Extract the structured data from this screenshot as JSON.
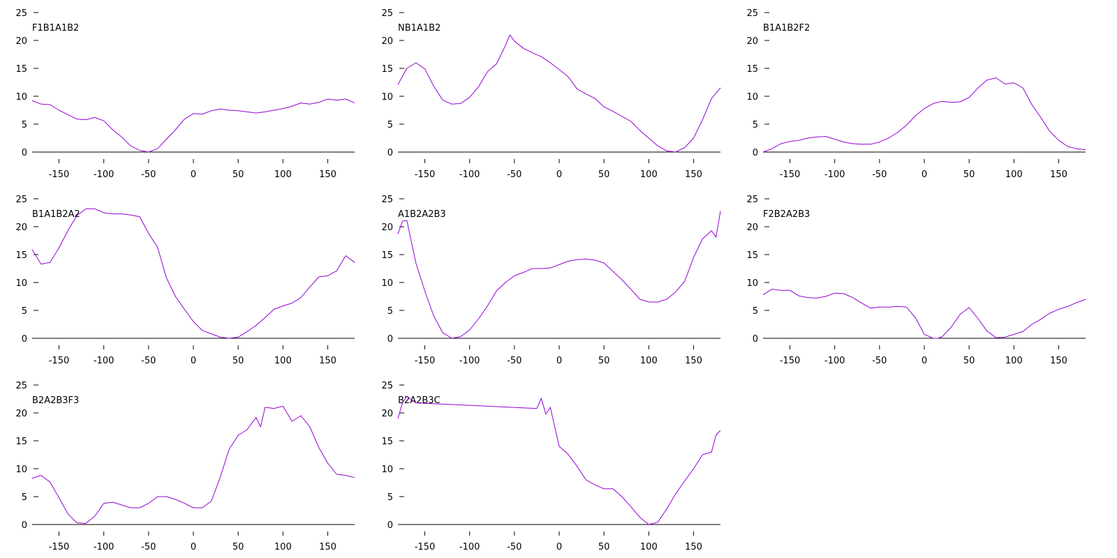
{
  "chart_data": [
    {
      "type": "line",
      "title": "F1B1A1B2",
      "xlim": [
        -180,
        180
      ],
      "ylim": [
        0,
        25
      ],
      "xticks": [
        -150,
        -100,
        -50,
        0,
        50,
        100,
        150
      ],
      "yticks": [
        0,
        5,
        10,
        15,
        20,
        25
      ],
      "x": [
        -180,
        -170,
        -160,
        -150,
        -140,
        -130,
        -120,
        -110,
        -100,
        -90,
        -80,
        -70,
        -60,
        -50,
        -40,
        -30,
        -20,
        -10,
        0,
        10,
        20,
        30,
        40,
        50,
        60,
        70,
        80,
        90,
        100,
        110,
        120,
        130,
        140,
        150,
        160,
        170,
        180
      ],
      "series": [
        {
          "values": [
            9.2,
            8.6,
            8.5,
            7.5,
            6.7,
            5.9,
            5.8,
            6.2,
            5.6,
            4.0,
            2.7,
            1.1,
            0.3,
            0.0,
            0.6,
            2.3,
            4.0,
            5.9,
            6.9,
            6.8,
            7.4,
            7.7,
            7.5,
            7.4,
            7.2,
            7.0,
            7.2,
            7.5,
            7.8,
            8.2,
            8.8,
            8.6,
            8.9,
            9.5,
            9.3,
            9.5,
            8.8
          ]
        }
      ]
    },
    {
      "type": "line",
      "title": "NB1A1B2",
      "xlim": [
        -180,
        180
      ],
      "ylim": [
        0,
        25
      ],
      "xticks": [
        -150,
        -100,
        -50,
        0,
        50,
        100,
        150
      ],
      "yticks": [
        0,
        5,
        10,
        15,
        20,
        25
      ],
      "x": [
        -180,
        -170,
        -160,
        -150,
        -140,
        -130,
        -120,
        -110,
        -100,
        -90,
        -80,
        -70,
        -60,
        -55,
        -50,
        -40,
        -30,
        -20,
        -10,
        0,
        10,
        20,
        30,
        40,
        50,
        60,
        70,
        80,
        90,
        100,
        110,
        120,
        130,
        140,
        150,
        160,
        170,
        180
      ],
      "series": [
        {
          "values": [
            12.1,
            15.0,
            16.0,
            14.9,
            11.8,
            9.3,
            8.6,
            8.7,
            9.8,
            11.7,
            14.4,
            15.8,
            19.1,
            21.0,
            19.9,
            18.6,
            17.8,
            17.1,
            16.0,
            14.8,
            13.5,
            11.3,
            10.4,
            9.6,
            8.1,
            7.3,
            6.4,
            5.5,
            3.9,
            2.5,
            1.1,
            0.2,
            0.0,
            0.8,
            2.5,
            5.8,
            9.6,
            11.5
          ]
        }
      ]
    },
    {
      "type": "line",
      "title": "B1A1B2F2",
      "xlim": [
        -180,
        180
      ],
      "ylim": [
        0,
        25
      ],
      "xticks": [
        -150,
        -100,
        -50,
        0,
        50,
        100,
        150
      ],
      "yticks": [
        0,
        5,
        10,
        15,
        20,
        25
      ],
      "x": [
        -180,
        -170,
        -160,
        -150,
        -140,
        -130,
        -120,
        -110,
        -100,
        -90,
        -80,
        -70,
        -60,
        -50,
        -40,
        -30,
        -20,
        -10,
        0,
        10,
        20,
        30,
        40,
        50,
        60,
        70,
        80,
        90,
        100,
        110,
        120,
        130,
        140,
        150,
        160,
        170,
        180
      ],
      "series": [
        {
          "values": [
            0.0,
            0.6,
            1.5,
            1.9,
            2.1,
            2.5,
            2.7,
            2.8,
            2.3,
            1.8,
            1.5,
            1.4,
            1.4,
            1.8,
            2.5,
            3.5,
            4.8,
            6.5,
            7.8,
            8.7,
            9.1,
            8.9,
            9.0,
            9.8,
            11.5,
            12.9,
            13.3,
            12.2,
            12.4,
            11.5,
            8.5,
            6.2,
            3.7,
            2.1,
            1.0,
            0.6,
            0.4
          ]
        }
      ]
    },
    {
      "type": "line",
      "title": "B1A1B2A2",
      "xlim": [
        -180,
        180
      ],
      "ylim": [
        0,
        25
      ],
      "xticks": [
        -150,
        -100,
        -50,
        0,
        50,
        100,
        150
      ],
      "yticks": [
        0,
        5,
        10,
        15,
        20,
        25
      ],
      "x": [
        -180,
        -170,
        -160,
        -150,
        -140,
        -130,
        -120,
        -110,
        -100,
        -90,
        -80,
        -70,
        -60,
        -50,
        -40,
        -30,
        -20,
        -10,
        0,
        10,
        20,
        30,
        40,
        50,
        60,
        70,
        80,
        90,
        100,
        110,
        120,
        130,
        140,
        150,
        160,
        170,
        180
      ],
      "series": [
        {
          "values": [
            15.9,
            13.3,
            13.6,
            16.2,
            19.3,
            22.0,
            23.2,
            23.2,
            22.5,
            22.3,
            22.3,
            22.1,
            21.8,
            18.8,
            16.3,
            10.8,
            7.5,
            5.2,
            3.0,
            1.4,
            0.8,
            0.2,
            0.0,
            0.2,
            1.2,
            2.3,
            3.7,
            5.2,
            5.8,
            6.3,
            7.3,
            9.2,
            11.0,
            11.2,
            12.1,
            14.8,
            13.6
          ]
        }
      ]
    },
    {
      "type": "line",
      "title": "A1B2A2B3",
      "xlim": [
        -180,
        180
      ],
      "ylim": [
        0,
        25
      ],
      "xticks": [
        -150,
        -100,
        -50,
        0,
        50,
        100,
        150
      ],
      "yticks": [
        0,
        5,
        10,
        15,
        20,
        25
      ],
      "x": [
        -180,
        -175,
        -170,
        -160,
        -150,
        -140,
        -130,
        -120,
        -110,
        -100,
        -90,
        -80,
        -70,
        -60,
        -50,
        -40,
        -30,
        -20,
        -10,
        0,
        10,
        20,
        30,
        40,
        50,
        60,
        70,
        80,
        90,
        100,
        110,
        120,
        130,
        140,
        150,
        160,
        170,
        175,
        180
      ],
      "series": [
        {
          "values": [
            18.7,
            21.0,
            21.1,
            13.5,
            8.5,
            4.0,
            1.0,
            0.0,
            0.3,
            1.5,
            3.5,
            5.8,
            8.5,
            10.0,
            11.2,
            11.8,
            12.5,
            12.5,
            12.6,
            13.2,
            13.8,
            14.1,
            14.2,
            14.0,
            13.5,
            12.0,
            10.5,
            8.8,
            7.0,
            6.5,
            6.5,
            7.0,
            8.3,
            10.2,
            14.5,
            17.8,
            19.3,
            18.1,
            22.8
          ]
        }
      ]
    },
    {
      "type": "line",
      "title": "F2B2A2B3",
      "xlim": [
        -180,
        180
      ],
      "ylim": [
        0,
        25
      ],
      "xticks": [
        -150,
        -100,
        -50,
        0,
        50,
        100,
        150
      ],
      "yticks": [
        0,
        5,
        10,
        15,
        20,
        25
      ],
      "x": [
        -180,
        -170,
        -160,
        -150,
        -140,
        -130,
        -120,
        -110,
        -100,
        -90,
        -80,
        -70,
        -60,
        -50,
        -40,
        -30,
        -20,
        -10,
        0,
        10,
        15,
        20,
        30,
        40,
        50,
        60,
        70,
        80,
        90,
        100,
        110,
        120,
        130,
        140,
        150,
        160,
        170,
        180
      ],
      "series": [
        {
          "values": [
            7.8,
            8.8,
            8.6,
            8.6,
            7.6,
            7.3,
            7.2,
            7.5,
            8.1,
            8.0,
            7.3,
            6.3,
            5.4,
            5.6,
            5.6,
            5.7,
            5.6,
            3.7,
            0.7,
            0.0,
            0.0,
            0.3,
            2.0,
            4.3,
            5.5,
            3.5,
            1.3,
            0.1,
            0.2,
            0.7,
            1.2,
            2.5,
            3.4,
            4.5,
            5.2,
            5.7,
            6.4,
            7.0
          ]
        }
      ]
    },
    {
      "type": "line",
      "title": "B2A2B3F3",
      "xlim": [
        -180,
        180
      ],
      "ylim": [
        0,
        25
      ],
      "xticks": [
        -150,
        -100,
        -50,
        0,
        50,
        100,
        150
      ],
      "yticks": [
        0,
        5,
        10,
        15,
        20,
        25
      ],
      "x": [
        -180,
        -170,
        -160,
        -150,
        -140,
        -130,
        -120,
        -110,
        -100,
        -90,
        -80,
        -70,
        -60,
        -50,
        -40,
        -30,
        -20,
        -10,
        0,
        10,
        20,
        30,
        40,
        50,
        60,
        70,
        75,
        80,
        90,
        100,
        110,
        120,
        130,
        140,
        150,
        160,
        170,
        180
      ],
      "series": [
        {
          "values": [
            8.3,
            8.8,
            7.6,
            4.8,
            1.9,
            0.3,
            0.2,
            1.5,
            3.8,
            4.0,
            3.5,
            3.0,
            3.0,
            3.8,
            5.0,
            5.0,
            4.5,
            3.8,
            3.0,
            3.0,
            4.2,
            8.5,
            13.5,
            16.0,
            17.0,
            19.2,
            17.5,
            21.0,
            20.8,
            21.2,
            18.5,
            19.5,
            17.5,
            13.8,
            11.0,
            9.0,
            8.8,
            8.4
          ]
        }
      ]
    },
    {
      "type": "line",
      "title": "B2A2B3C",
      "xlim": [
        -180,
        180
      ],
      "ylim": [
        0,
        25
      ],
      "xticks": [
        -150,
        -100,
        -50,
        0,
        50,
        100,
        150
      ],
      "yticks": [
        0,
        5,
        10,
        15,
        20,
        25
      ],
      "x": [
        -180,
        -175,
        -170,
        -160,
        -25,
        -20,
        -15,
        -10,
        0,
        10,
        20,
        30,
        40,
        50,
        60,
        70,
        80,
        90,
        100,
        110,
        120,
        130,
        140,
        150,
        160,
        170,
        175,
        180
      ],
      "series": [
        {
          "values": [
            19.0,
            21.8,
            23.0,
            21.8,
            20.8,
            22.6,
            19.8,
            21.0,
            14.0,
            12.6,
            10.4,
            8.0,
            7.1,
            6.4,
            6.4,
            5.0,
            3.2,
            1.3,
            0.0,
            0.4,
            2.8,
            5.5,
            7.8,
            10.0,
            12.5,
            13.0,
            16.0,
            16.9
          ]
        }
      ]
    }
  ],
  "colors": {
    "series": "#9400D3",
    "axis": "#000000",
    "background": "#ffffff"
  }
}
